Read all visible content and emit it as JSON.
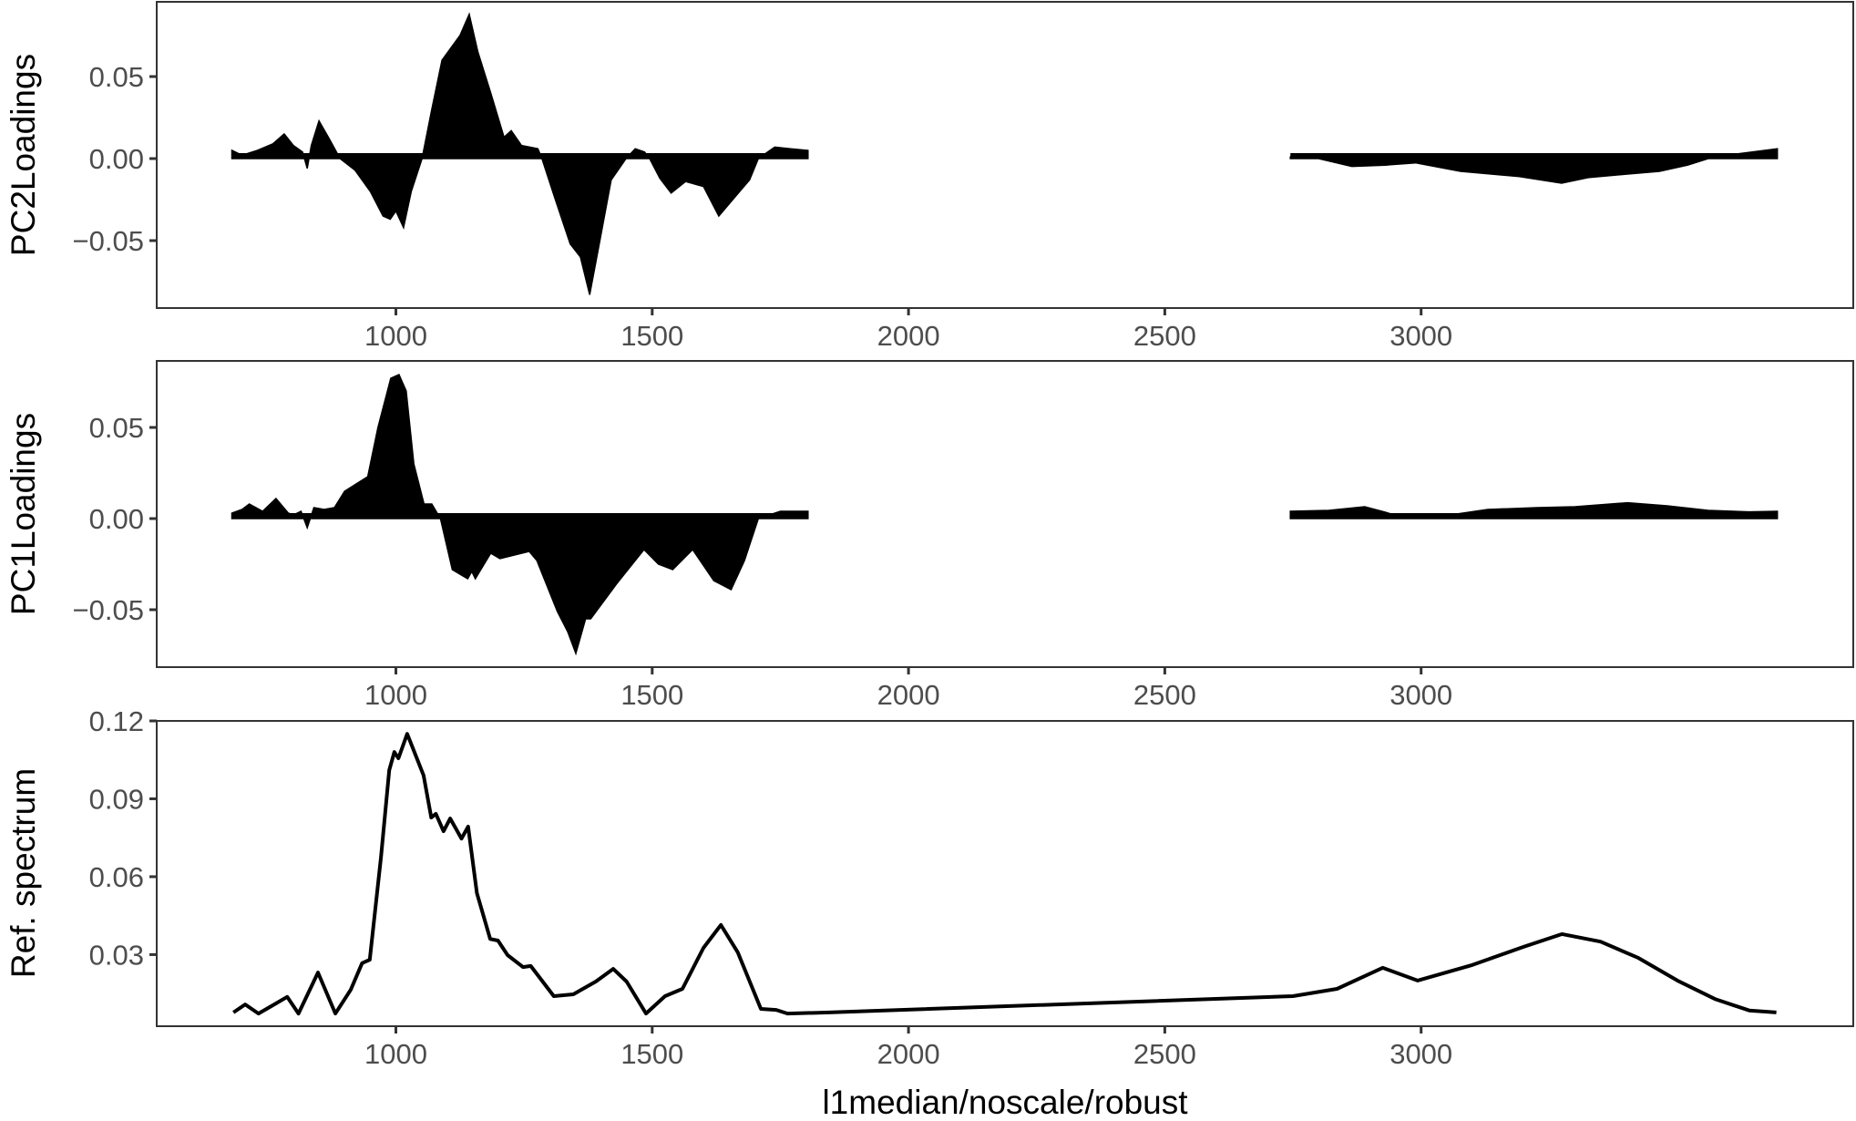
{
  "figure": {
    "xlabel": "l1median/noscale/robust",
    "x_ticks": [
      1000,
      1500,
      2000,
      2500,
      3000
    ],
    "x_tick_labels": [
      "1000",
      "1500",
      "2000",
      "2500",
      "3000"
    ],
    "colors": {
      "fill": "#000000",
      "line": "#000000",
      "axis": "#333333",
      "tick_text": "#4d4d4d",
      "background": "#ffffff"
    }
  },
  "chart_data": [
    {
      "type": "area",
      "title": "",
      "ylabel": "PC2Loadings",
      "xlabel": "",
      "xlim": [
        560,
        3870
      ],
      "ylim": [
        -0.0915,
        0.0965
      ],
      "y_ticks": [
        0.05,
        0.0,
        -0.05
      ],
      "y_tick_labels": [
        "0.05",
        "0.00",
        "−0.05"
      ],
      "grid": false,
      "segments": [
        {
          "x": [
            680,
            700,
            730,
            760,
            782,
            800,
            818,
            827,
            835,
            850,
            870,
            891,
            920,
            950,
            975,
            989,
            1000,
            1015,
            1030,
            1051,
            1070,
            1090,
            1111,
            1125,
            1143,
            1160,
            1185,
            1211,
            1225,
            1245,
            1277,
            1285,
            1310,
            1340,
            1360,
            1378,
            1395,
            1420,
            1449,
            1467,
            1485,
            1495,
            1515,
            1537,
            1565,
            1600,
            1630,
            1660,
            1690,
            1707,
            1739,
            1770,
            1804
          ],
          "values": [
            0.005,
            0.002,
            0.005,
            0.009,
            0.015,
            0.008,
            0.004,
            -0.006,
            0.008,
            0.023,
            0.012,
            0.0,
            -0.007,
            -0.02,
            -0.035,
            -0.037,
            -0.032,
            -0.042,
            -0.02,
            0.0,
            0.03,
            0.06,
            0.069,
            0.075,
            0.088,
            0.065,
            0.04,
            0.013,
            0.017,
            0.008,
            0.006,
            0.0,
            -0.024,
            -0.052,
            -0.06,
            -0.083,
            -0.055,
            -0.013,
            0.0,
            0.006,
            0.004,
            0.0,
            -0.012,
            -0.021,
            -0.014,
            -0.017,
            -0.035,
            -0.024,
            -0.013,
            0.0,
            0.007,
            0.006,
            0.005
          ]
        },
        {
          "x": [
            2745,
            2800,
            2865,
            2930,
            2989,
            3077,
            3192,
            3274,
            3328,
            3400,
            3465,
            3520,
            3560,
            3620,
            3695
          ],
          "values": [
            0.001,
            0.0,
            -0.0048,
            -0.004,
            -0.0026,
            -0.0078,
            -0.011,
            -0.015,
            -0.0115,
            -0.0095,
            -0.0078,
            -0.004,
            0.0,
            0.003,
            0.006
          ]
        }
      ]
    },
    {
      "type": "area",
      "title": "",
      "ylabel": "PC1Loadings",
      "xlabel": "",
      "xlim": [
        560,
        3870
      ],
      "ylim": [
        -0.0815,
        0.0865
      ],
      "y_ticks": [
        0.05,
        0.0,
        -0.05
      ],
      "y_tick_labels": [
        "0.05",
        "0.00",
        "−0.05"
      ],
      "grid": false,
      "segments": [
        {
          "x": [
            680,
            700,
            714,
            740,
            766,
            790,
            800,
            815,
            827,
            840,
            860,
            880,
            900,
            945,
            965,
            990,
            1006,
            1020,
            1035,
            1055,
            1070,
            1087,
            1110,
            1140,
            1148,
            1155,
            1185,
            1203,
            1260,
            1275,
            1315,
            1335,
            1351,
            1370,
            1380,
            1430,
            1484,
            1512,
            1540,
            1579,
            1620,
            1654,
            1680,
            1707,
            1750,
            1804
          ],
          "values": [
            0.003,
            0.005,
            0.008,
            0.004,
            0.011,
            0.003,
            0.002,
            0.004,
            -0.005,
            0.006,
            0.005,
            0.006,
            0.015,
            0.023,
            0.05,
            0.077,
            0.079,
            0.07,
            0.03,
            0.008,
            0.008,
            0.0,
            -0.028,
            -0.033,
            -0.029,
            -0.033,
            -0.019,
            -0.022,
            -0.018,
            -0.023,
            -0.051,
            -0.062,
            -0.074,
            -0.055,
            -0.055,
            -0.036,
            -0.017,
            -0.025,
            -0.028,
            -0.017,
            -0.034,
            -0.039,
            -0.023,
            0.0,
            0.004,
            0.004
          ]
        },
        {
          "x": [
            2745,
            2820,
            2890,
            2930,
            2960,
            3057,
            3130,
            3227,
            3300,
            3403,
            3480,
            3560,
            3640,
            3695
          ],
          "values": [
            0.004,
            0.0045,
            0.0065,
            0.0035,
            0.001,
            0.002,
            0.005,
            0.006,
            0.0065,
            0.0087,
            0.007,
            0.0045,
            0.0037,
            0.004
          ]
        }
      ]
    },
    {
      "type": "line",
      "title": "",
      "ylabel": "Ref. spectrum",
      "xlabel": "l1median/noscale/robust",
      "xlim": [
        560,
        3870
      ],
      "ylim": [
        0.0025,
        0.12
      ],
      "y_ticks": [
        0.12,
        0.09,
        0.06,
        0.03
      ],
      "y_tick_labels": [
        "0.12",
        "0.09",
        "0.06",
        "0.03"
      ],
      "grid": false,
      "x": [
        683,
        706,
        732,
        766,
        788,
        810,
        848,
        882,
        912,
        934,
        949,
        971,
        987,
        997,
        1005,
        1022,
        1038,
        1054,
        1069,
        1078,
        1093,
        1106,
        1128,
        1141,
        1158,
        1184,
        1199,
        1218,
        1248,
        1263,
        1308,
        1346,
        1390,
        1424,
        1450,
        1488,
        1525,
        1559,
        1600,
        1634,
        1667,
        1712,
        1742,
        1764,
        1845,
        2750,
        2836,
        2925,
        2993,
        3100,
        3200,
        3275,
        3350,
        3424,
        3500,
        3573,
        3640,
        3693
      ],
      "values": [
        0.0077,
        0.0108,
        0.0073,
        0.0112,
        0.0137,
        0.0073,
        0.0231,
        0.0073,
        0.0165,
        0.0267,
        0.028,
        0.0677,
        0.101,
        0.108,
        0.1056,
        0.115,
        0.107,
        0.099,
        0.0828,
        0.0842,
        0.0775,
        0.0824,
        0.0747,
        0.0793,
        0.0537,
        0.036,
        0.0354,
        0.0298,
        0.0252,
        0.0256,
        0.014,
        0.0147,
        0.0196,
        0.0245,
        0.0196,
        0.0073,
        0.014,
        0.0168,
        0.0326,
        0.0414,
        0.0308,
        0.0091,
        0.0087,
        0.0073,
        0.0077,
        0.014,
        0.0168,
        0.0249,
        0.02,
        0.026,
        0.033,
        0.0379,
        0.035,
        0.0287,
        0.02,
        0.0129,
        0.0085,
        0.0077
      ]
    }
  ]
}
